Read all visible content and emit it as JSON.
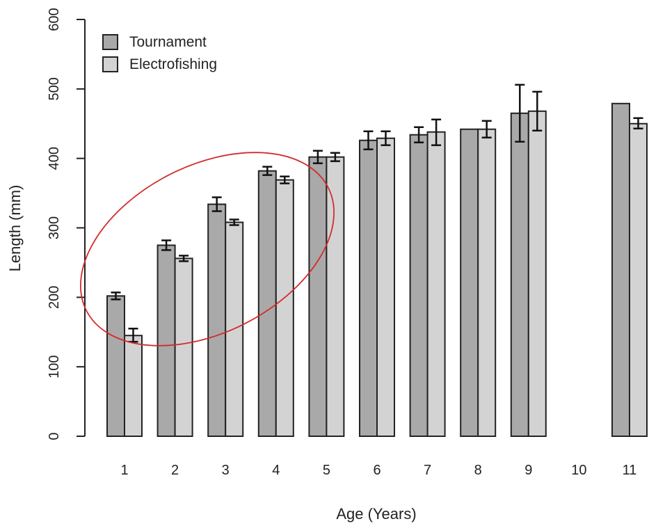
{
  "chart_data": {
    "type": "bar",
    "xlabel": "Age (Years)",
    "ylabel": "Length (mm)",
    "ylim": [
      0,
      600
    ],
    "yticks": [
      0,
      100,
      200,
      300,
      400,
      500,
      600
    ],
    "categories": [
      "1",
      "2",
      "3",
      "4",
      "5",
      "6",
      "7",
      "8",
      "9",
      "10",
      "11"
    ],
    "legend_position": "top-left",
    "grid": false,
    "series": [
      {
        "name": "Tournament",
        "color": "#a9a9a9",
        "values": [
          202,
          275,
          334,
          382,
          402,
          426,
          434,
          442,
          465,
          null,
          479
        ],
        "err_low": [
          197,
          268,
          324,
          376,
          393,
          413,
          423,
          442,
          424,
          null,
          479
        ],
        "err_high": [
          207,
          282,
          344,
          388,
          411,
          439,
          445,
          442,
          506,
          null,
          479
        ]
      },
      {
        "name": "Electrofishing",
        "color": "#d3d3d3",
        "values": [
          145,
          256,
          308,
          369,
          402,
          429,
          438,
          442,
          468,
          null,
          450
        ],
        "err_low": [
          136,
          252,
          304,
          364,
          396,
          419,
          419,
          430,
          440,
          null,
          443
        ],
        "err_high": [
          155,
          260,
          312,
          374,
          408,
          439,
          456,
          454,
          496,
          null,
          458
        ]
      }
    ],
    "annotations": [
      {
        "type": "ellipse",
        "color": "#d42b2b",
        "encloses_categories": [
          "1",
          "2",
          "3",
          "4"
        ]
      }
    ]
  }
}
